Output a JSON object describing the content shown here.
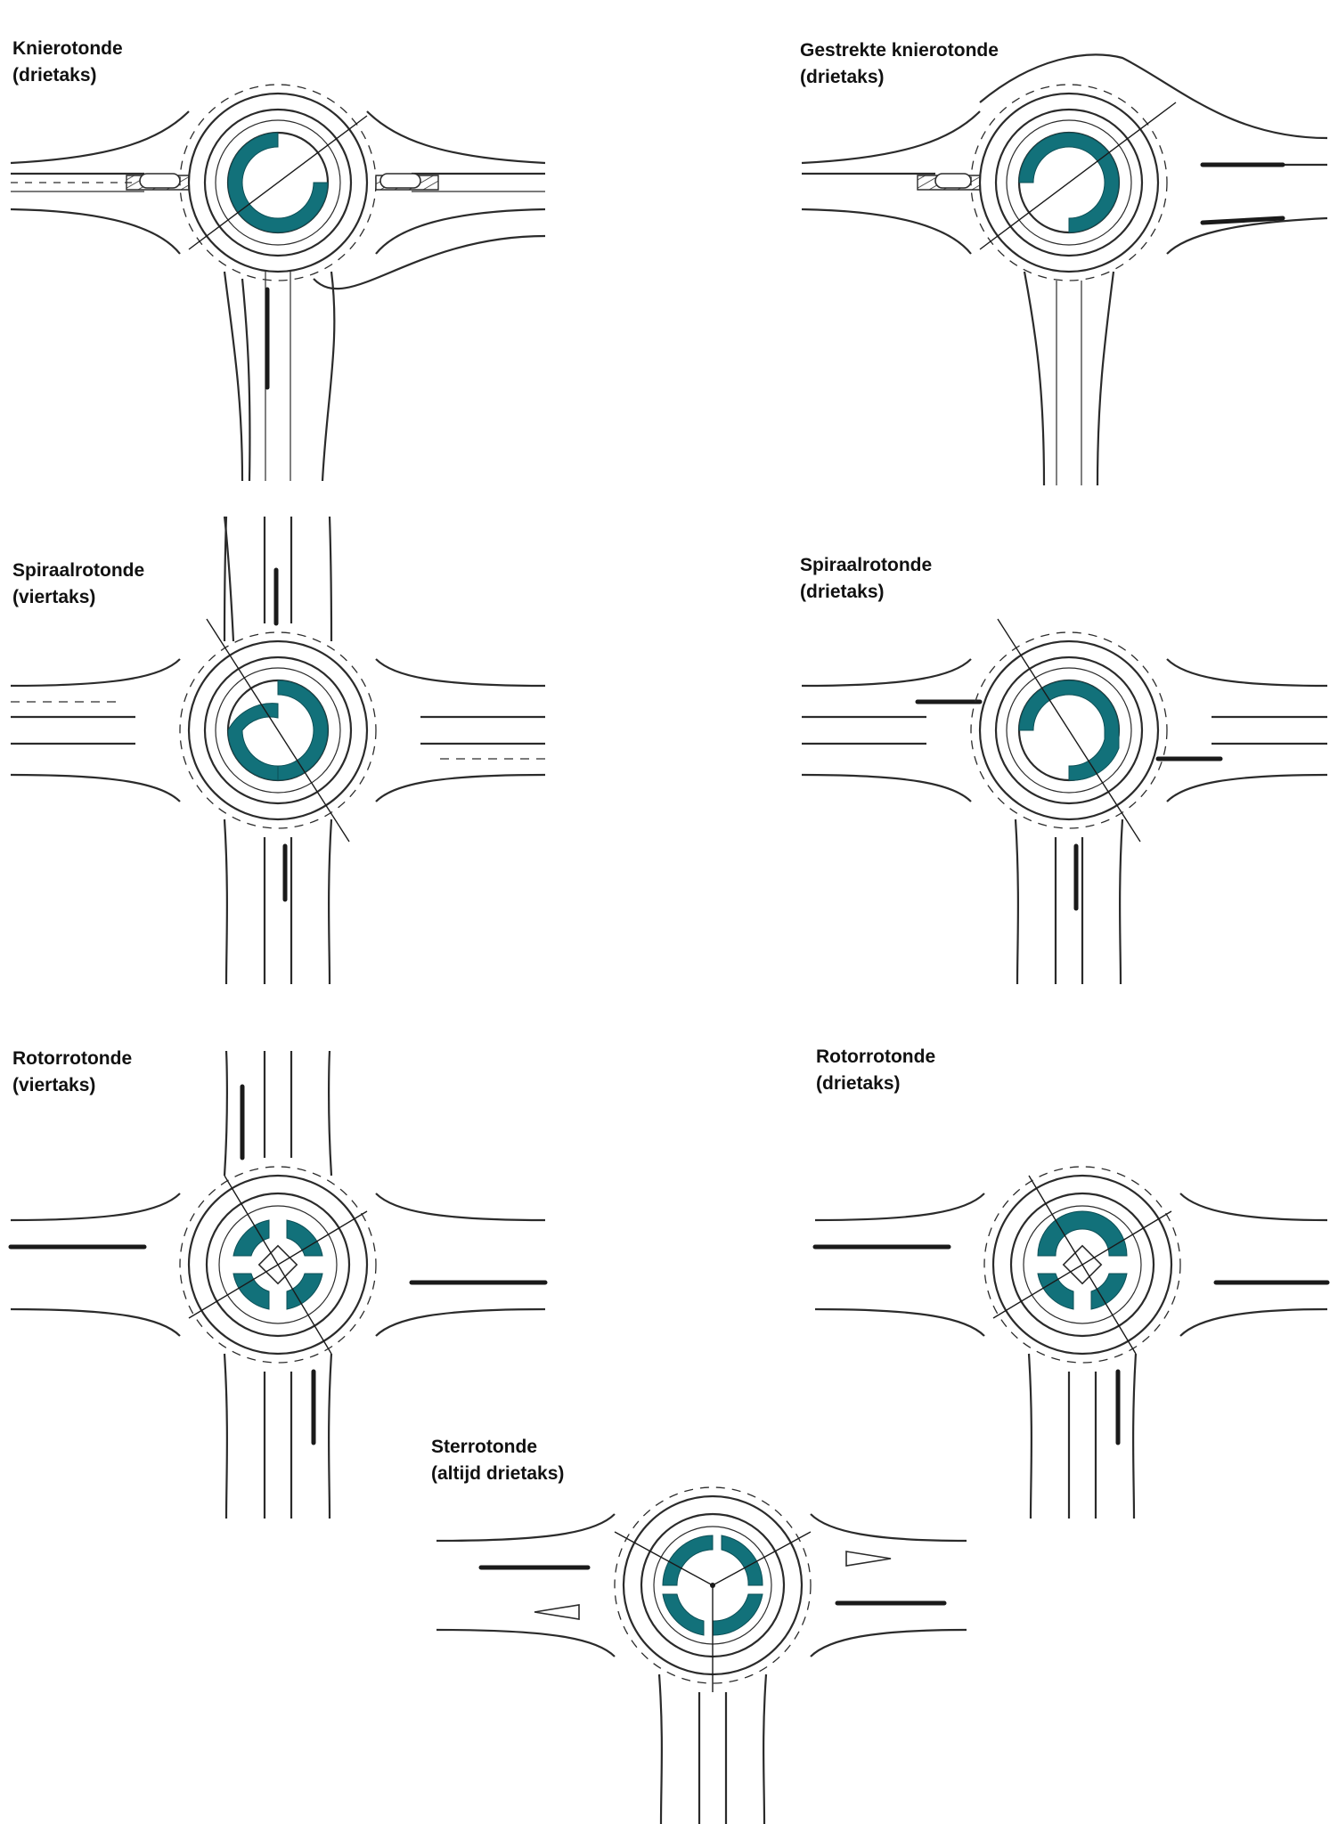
{
  "diagrams": [
    {
      "id": "knierotonde",
      "title": [
        "Knierotonde",
        "(drietaks)"
      ]
    },
    {
      "id": "gestrekte-knierotonde",
      "title": [
        "Gestrekte knierotonde",
        "(drietaks)"
      ]
    },
    {
      "id": "spiraalrotonde-4",
      "title": [
        "Spiraalrotonde",
        "(viertaks)"
      ]
    },
    {
      "id": "spiraalrotonde-3",
      "title": [
        "Spiraalrotonde",
        "(drietaks)"
      ]
    },
    {
      "id": "rotorrotonde-4",
      "title": [
        "Rotorrotonde",
        "(viertaks)"
      ]
    },
    {
      "id": "rotorrotonde-3",
      "title": [
        "Rotorrotonde",
        "(drietaks)"
      ]
    },
    {
      "id": "sterrotonde",
      "title": [
        "Sterrotonde",
        "(altijd drietaks)"
      ]
    }
  ],
  "colors": {
    "island": "#12717a",
    "line": "#2b2b2b",
    "background": "#ffffff"
  }
}
